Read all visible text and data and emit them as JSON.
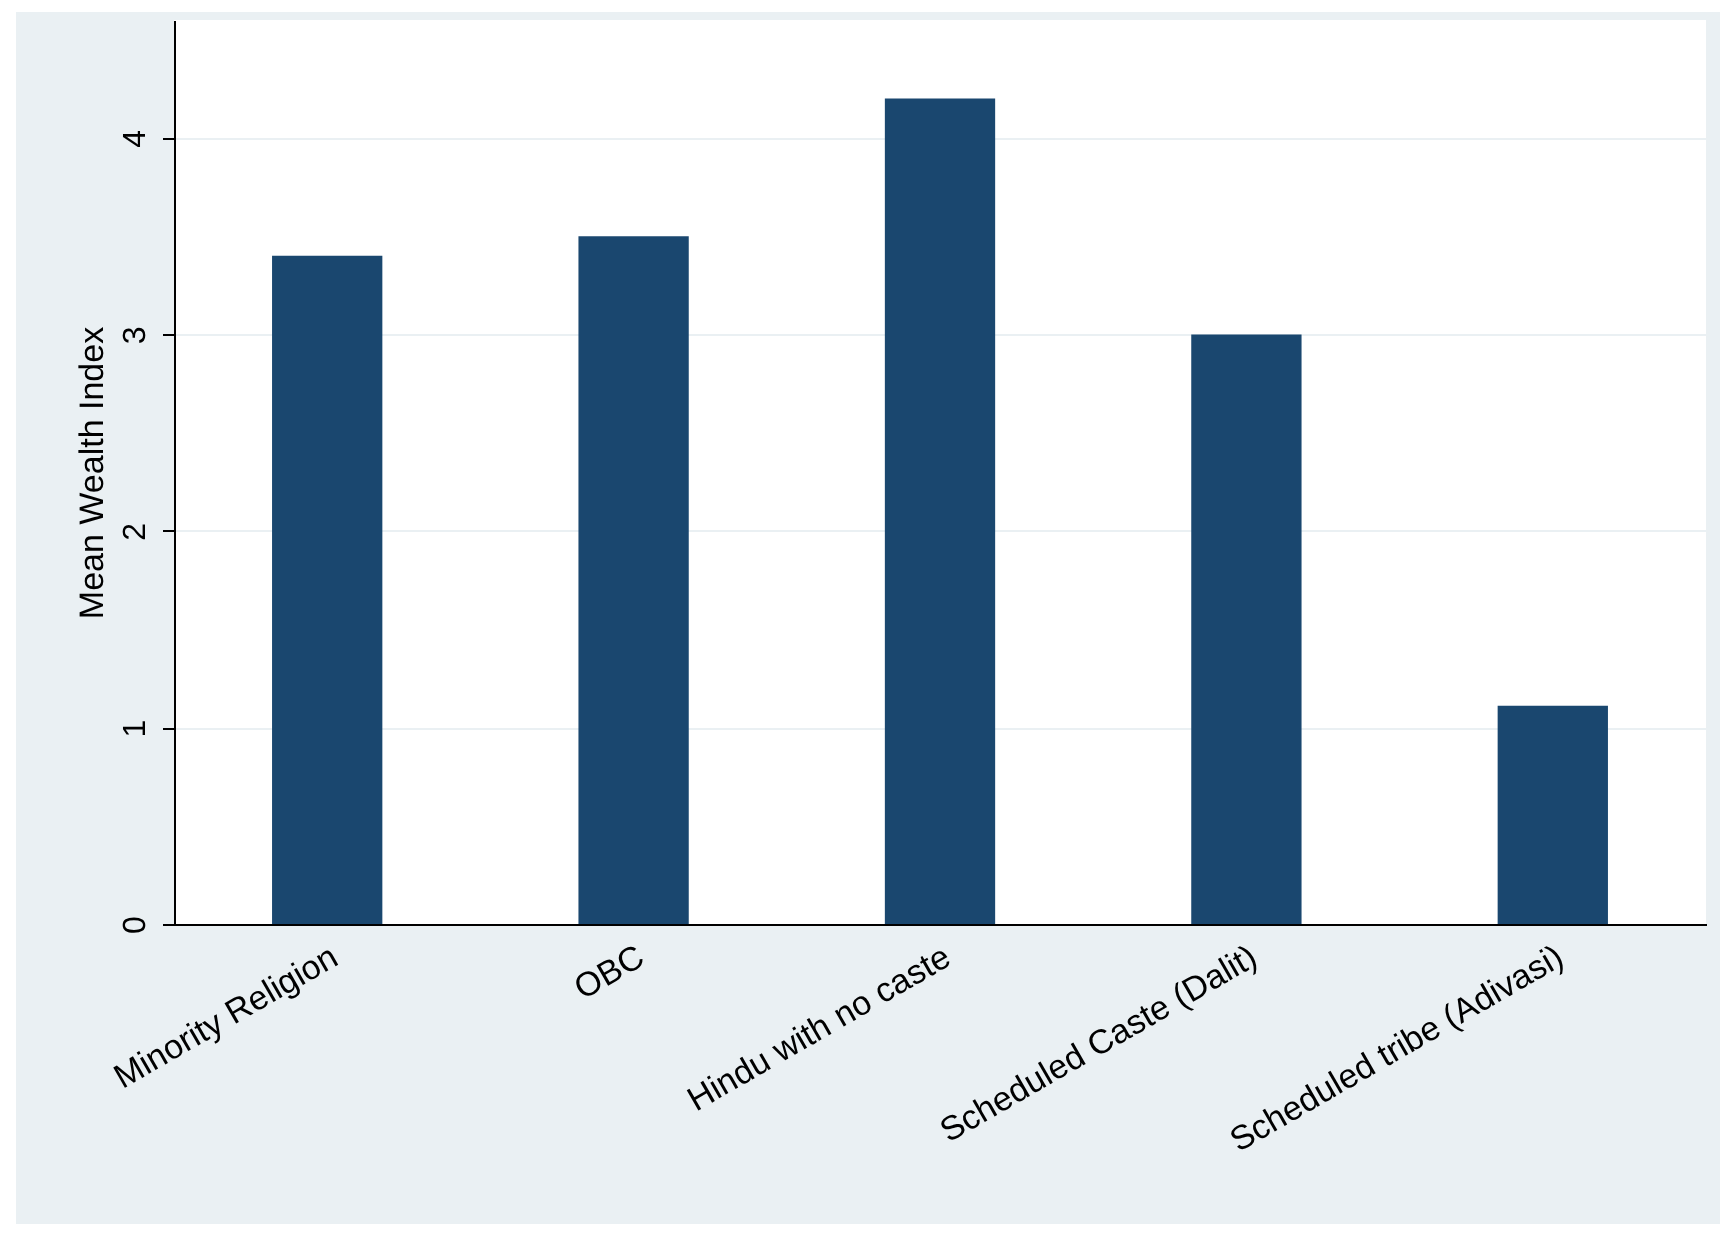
{
  "chart_data": {
    "type": "bar",
    "ylabel": "Mean Wealth Index",
    "categories": [
      "Minority Religion",
      "OBC",
      "Hindu with no caste",
      "Scheduled Caste (Dalit)",
      "Scheduled tribe (Adivasi)"
    ],
    "values": [
      3.4,
      3.5,
      4.2,
      3.0,
      1.11
    ],
    "color": "#1a476f",
    "ylim": [
      0,
      4.6
    ],
    "yticks": [
      0,
      1,
      2,
      3,
      4
    ],
    "grid": "y"
  }
}
